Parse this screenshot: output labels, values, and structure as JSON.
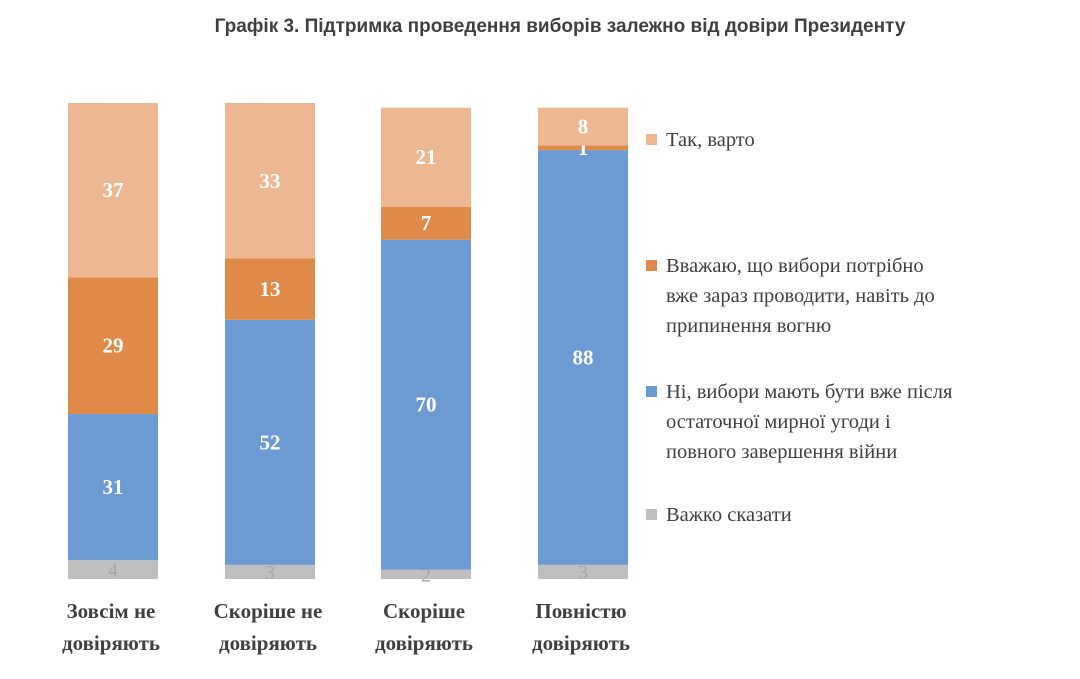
{
  "chart_data": {
    "type": "bar",
    "stacked": true,
    "title": "Графік 3. Підтримка проведення виборів залежно від довіри Президенту",
    "categories": [
      [
        "Зовсім не",
        "довіряють"
      ],
      [
        "Скоріше не",
        "довіряють"
      ],
      [
        "Скоріше",
        "довіряють"
      ],
      [
        "Повністю",
        "довіряють"
      ]
    ],
    "series": [
      {
        "name": "Важко сказати",
        "color": "#bfbfbf",
        "values": [
          4,
          3,
          2,
          3
        ]
      },
      {
        "name": "Ні, вибори мають бути вже після остаточної мирної угоди і повного завершення війни",
        "color": "#6b9bd2",
        "values": [
          31,
          52,
          70,
          88
        ]
      },
      {
        "name": "Вважаю, що вибори потрібно вже зараз проводити, навіть до припинення вогню",
        "color": "#e08a4a",
        "values": [
          29,
          13,
          7,
          1
        ]
      },
      {
        "name": "Так, варто",
        "color": "#ecb791",
        "values": [
          37,
          33,
          21,
          8
        ]
      }
    ],
    "legend": {
      "position": "right",
      "items": [
        {
          "color": "#ecb791",
          "lines": [
            "Так, варто"
          ]
        },
        {
          "color": "#e08a4a",
          "lines": [
            "Вважаю, що вибори потрібно",
            "вже зараз проводити, навіть до",
            "припинення вогню"
          ]
        },
        {
          "color": "#6b9bd2",
          "lines": [
            "Ні, вибори мають бути вже після",
            "остаточної мирної угоди і",
            "повного завершення війни"
          ]
        },
        {
          "color": "#bfbfbf",
          "lines": [
            "Важко сказати"
          ]
        }
      ]
    },
    "grid": false
  }
}
